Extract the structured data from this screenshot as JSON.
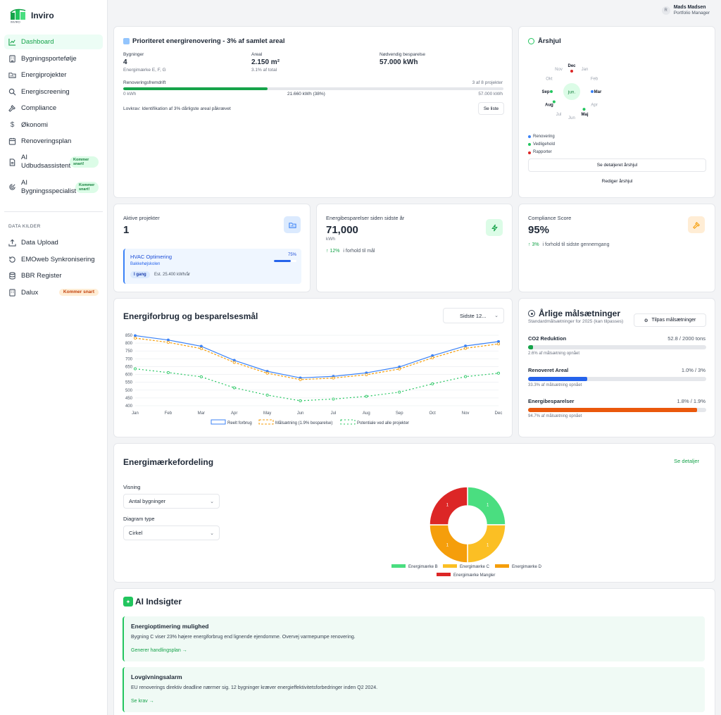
{
  "app": {
    "name": "Inviro"
  },
  "colors": {
    "primary": "#22c55e",
    "blue": "#3b82f6",
    "orange": "#f59e0b",
    "red": "#dc2626"
  },
  "sidebar": {
    "items": [
      {
        "label": "Dashboard",
        "icon": "chart-line-icon"
      },
      {
        "label": "Bygningsportefølje",
        "icon": "building-icon"
      },
      {
        "label": "Energiprojekter",
        "icon": "folder-icon"
      },
      {
        "label": "Energiscreening",
        "icon": "search-icon"
      },
      {
        "label": "Compliance",
        "icon": "hammer-icon"
      },
      {
        "label": "Økonomi",
        "icon": "dollar-icon"
      },
      {
        "label": "Renoveringsplan",
        "icon": "calendar-icon"
      },
      {
        "label": "AI Udbudsassistent",
        "badge": "Kommer snart!",
        "icon": "document-icon"
      },
      {
        "label": "AI Bygningsspecialist",
        "badge": "Kommer snart!",
        "icon": "radar-icon"
      }
    ],
    "section_label": "DATA KILDER",
    "data_items": [
      {
        "label": "Data Upload",
        "icon": "upload-icon"
      },
      {
        "label": "EMOweb Synkronisering",
        "icon": "refresh-icon"
      },
      {
        "label": "BBR Register",
        "icon": "database-icon"
      },
      {
        "label": "Dalux",
        "badge": "Kommer snart",
        "icon": "building-icon"
      }
    ]
  },
  "user": {
    "name": "Mads Madsen",
    "role": "Portfolio Manager",
    "initial": "R"
  },
  "priority": {
    "title": "Prioriteret energirenovering - 3% af samlet areal",
    "buildings_label": "Bygninger",
    "buildings_value": "4",
    "buildings_sub": "Energimærke E, F, G",
    "area_label": "Areal",
    "area_value": "2.150 m²",
    "area_sub": "3.1% af total",
    "savings_label": "Nødvendig besparelse",
    "savings_value": "57.000 kWh",
    "progress_label": "Renoveringsfremdrift",
    "progress_count": "3 af 8 projekter",
    "progress_fraction": 0.38,
    "progress_min": "0 kWh",
    "progress_mid": "21.660 kWh (38%)",
    "progress_max": "57.000 kWh",
    "law": "Lovkrav: Identifikation af 3% dårligste areal påkrævet",
    "list_button": "Se liste"
  },
  "yearwheel": {
    "title": "Årshjul",
    "center": "jun.",
    "months": [
      "Jan",
      "Feb",
      "Mar",
      "Apr",
      "Maj",
      "Jun",
      "Jul",
      "Aug",
      "Sep",
      "Okt",
      "Nov",
      "Dec"
    ],
    "legend": [
      {
        "label": "Renovering",
        "color": "#3b82f6"
      },
      {
        "label": "Vedligehold",
        "color": "#22c55e"
      },
      {
        "label": "Rapporter",
        "color": "#dc2626"
      }
    ],
    "detail_button": "Se detaljeret årshjul",
    "edit_button": "Rediger årshjul"
  },
  "active_projects": {
    "title": "Aktive projekter",
    "value": "1",
    "project_name": "HVAC Optimering",
    "project_site": "Bakkehøjskolen",
    "project_pct": "75%",
    "project_fraction": 0.75,
    "status": "I gang",
    "estimate": "Est. 25.400 kWh/år"
  },
  "energy_savings": {
    "title": "Energibesparelser siden sidste år",
    "value": "71,000",
    "unit": "kWh",
    "change": "↑ 12%",
    "change_text": "i forhold til mål"
  },
  "compliance": {
    "title": "Compliance Score",
    "value": "95%",
    "change": "↑ 3%",
    "change_text": "i forhold til sidste gennemgang"
  },
  "energy_chart": {
    "title": "Energiforbrug og besparelsesmål",
    "period_select": "Sidste 12..."
  },
  "chart_data": [
    {
      "type": "line",
      "x": [
        "Jan",
        "Feb",
        "Mar",
        "Apr",
        "Maj",
        "Jun",
        "Jul",
        "Aug",
        "Sep",
        "Okt",
        "Nov",
        "Dec"
      ],
      "x_tick_labels": [
        "Jan",
        "Feb",
        "Mar",
        "Apr",
        "May",
        "Jun",
        "Jul",
        "Aug",
        "Sep",
        "Oct",
        "Nov",
        "Dec"
      ],
      "ylim": [
        400,
        850
      ],
      "yticks": [
        850,
        800,
        750,
        700,
        650,
        600,
        550,
        500,
        450,
        400
      ],
      "grid": true,
      "series": [
        {
          "name": "Reelt forbrug",
          "color": "#3b82f6",
          "values": [
            848,
            820,
            780,
            690,
            620,
            578,
            588,
            610,
            648,
            720,
            782,
            810
          ]
        },
        {
          "name": "Målsætning (1.9% besparelse)",
          "color": "#f59e0b",
          "values": [
            832,
            805,
            765,
            677,
            608,
            567,
            577,
            598,
            635,
            706,
            767,
            795
          ]
        },
        {
          "name": "Potentiale ved alle projekter",
          "color": "#22c55e",
          "values": [
            636,
            612,
            585,
            515,
            468,
            432,
            443,
            460,
            487,
            540,
            586,
            608
          ]
        }
      ]
    },
    {
      "type": "pie",
      "categories": [
        "Energimærke B",
        "Energimærke C",
        "Energimærke D",
        "Energimærke Mangler"
      ],
      "values": [
        1,
        1,
        1,
        1
      ],
      "colors": [
        "#4ade80",
        "#fbbf24",
        "#f59e0b",
        "#dc2626"
      ]
    }
  ],
  "goals": {
    "title": "Årlige målsætninger",
    "subtitle": "Standardmålsætninger for 2025 (kan tilpasses)",
    "customize_button": "Tilpas målsætninger",
    "items": [
      {
        "label": "CO2 Reduktion",
        "value": "52.8 / 2000 tons",
        "fraction": 0.026,
        "note": "2.6% af målsætning opnået",
        "color": "#16a34a"
      },
      {
        "label": "Renoveret Areal",
        "value": "1.0% / 3%",
        "fraction": 0.333,
        "note": "33.3% af målsætning opnået",
        "color": "#2563eb"
      },
      {
        "label": "Energibesparelser",
        "value": "1.8% / 1.9%",
        "fraction": 0.947,
        "note": "94.7% af målsætning opnået",
        "color": "#ea580c"
      }
    ]
  },
  "distribution": {
    "title": "Energimærkefordeling",
    "details_link": "Se detaljer",
    "view_label": "Visning",
    "view_value": "Antal bygninger",
    "type_label": "Diagram type",
    "type_value": "Cirkel"
  },
  "ai": {
    "title": "AI Indsigter",
    "insights": [
      {
        "title": "Energioptimering mulighed",
        "text": "Bygning C viser 23% højere energiforbrug end lignende ejendomme. Overvej varmepumpe renovering.",
        "action": "Generer handlingsplan"
      },
      {
        "title": "Lovgivningsalarm",
        "text": "EU renoverings direktiv deadline nærmer sig. 12 bygninger kræver energieffektivitetsforbedringer inden Q2 2024.",
        "action": "Se krav"
      }
    ]
  }
}
